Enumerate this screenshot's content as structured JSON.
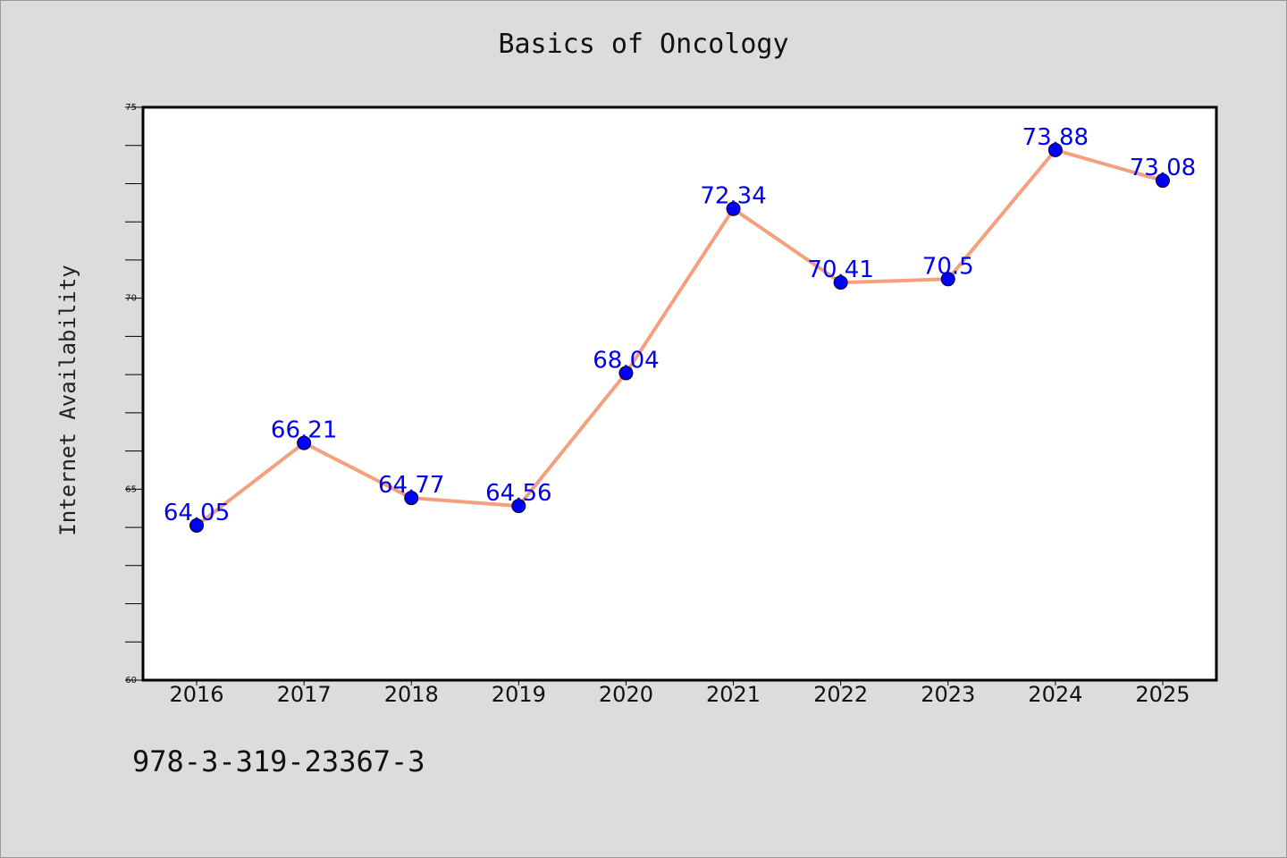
{
  "chart_data": {
    "type": "line",
    "title": "Basics of Oncology",
    "xlabel": "",
    "ylabel": "Internet Availability",
    "categories": [
      "2016",
      "2017",
      "2018",
      "2019",
      "2020",
      "2021",
      "2022",
      "2023",
      "2024",
      "2025"
    ],
    "series": [
      {
        "values": [
          64.05,
          66.21,
          64.77,
          64.56,
          68.04,
          72.34,
          70.41,
          70.5,
          73.88,
          73.08
        ],
        "labels": [
          "64.05",
          "66.21",
          "64.77",
          "64.56",
          "68.04",
          "72.34",
          "70.41",
          "70.5",
          "73.88",
          "73.08"
        ]
      }
    ],
    "ylim": [
      60,
      75
    ],
    "yticks": [
      "60",
      "65",
      "70",
      "75"
    ],
    "grid": false,
    "legend": "none",
    "colors": {
      "line": "#f4a07e",
      "marker": "#0000ff",
      "data_label": "#0000ee",
      "plot_background": "#ffffff",
      "page_background": "#dcdcdc"
    }
  },
  "footer_text": "978-3-319-23367-3"
}
